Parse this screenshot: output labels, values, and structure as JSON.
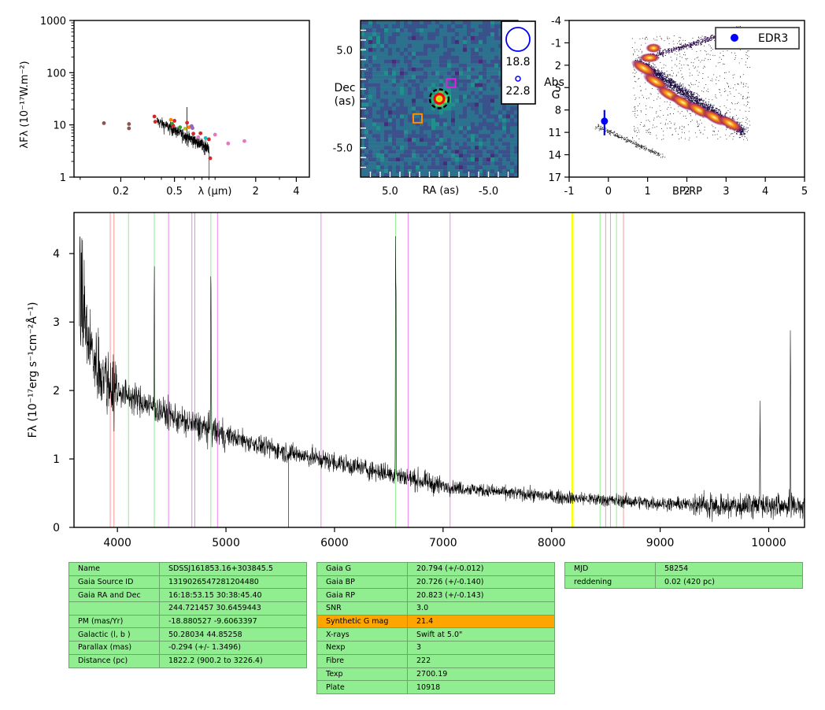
{
  "chart_data": [
    {
      "type": "scatter",
      "panel": "sed",
      "ylabel": "λFλ (10⁻¹⁷W.m⁻²)",
      "xlabel": "λ (μm)",
      "xscale": "log",
      "yscale": "log",
      "xlim": [
        0.09,
        5.0
      ],
      "ylim": [
        1,
        1000
      ],
      "xticks": [
        {
          "v": 0.2,
          "label": "0.2"
        },
        {
          "v": 0.5,
          "label": "0.5"
        },
        {
          "v": 2,
          "label": "2"
        },
        {
          "v": 4,
          "label": "4"
        }
      ],
      "yticks": [
        {
          "v": 1,
          "label": "1"
        },
        {
          "v": 10,
          "label": "10"
        },
        {
          "v": 100,
          "label": "100"
        },
        {
          "v": 1000,
          "label": "1000"
        }
      ],
      "points": [
        {
          "x": 0.15,
          "y": 10.8,
          "color": "#8c564b"
        },
        {
          "x": 0.23,
          "y": 10.4,
          "color": "#8c564b"
        },
        {
          "x": 0.23,
          "y": 8.6,
          "color": "#8c564b"
        },
        {
          "x": 0.355,
          "y": 14.5,
          "color": "#d62728"
        },
        {
          "x": 0.36,
          "y": 11.5,
          "color": "#d62728"
        },
        {
          "x": 0.47,
          "y": 12.5,
          "color": "#ff7f0e"
        },
        {
          "x": 0.48,
          "y": 10.5,
          "color": "#2ca02c"
        },
        {
          "x": 0.49,
          "y": 9.5,
          "color": "#d62728"
        },
        {
          "x": 0.5,
          "y": 12.0,
          "color": "#d62728"
        },
        {
          "x": 0.55,
          "y": 9.0,
          "color": "#2ca02c"
        },
        {
          "x": 0.6,
          "y": 8.5,
          "color": "#bcbd22"
        },
        {
          "x": 0.62,
          "y": 11.0,
          "color": "#d62728"
        },
        {
          "x": 0.64,
          "y": 9.0,
          "color": "#ff7f0e"
        },
        {
          "x": 0.67,
          "y": 9.5,
          "color": "#9467bd"
        },
        {
          "x": 0.68,
          "y": 8.7,
          "color": "#9467bd"
        },
        {
          "x": 0.69,
          "y": 6.8,
          "color": "#d62728"
        },
        {
          "x": 0.75,
          "y": 5.8,
          "color": "#e377c2"
        },
        {
          "x": 0.78,
          "y": 6.9,
          "color": "#d62728"
        },
        {
          "x": 0.85,
          "y": 5.6,
          "color": "#17becf"
        },
        {
          "x": 0.9,
          "y": 5.3,
          "color": "#d62728"
        },
        {
          "x": 0.92,
          "y": 2.3,
          "color": "#d62728"
        },
        {
          "x": 1.0,
          "y": 6.5,
          "color": "#e377c2"
        },
        {
          "x": 1.25,
          "y": 4.4,
          "color": "#e377c2"
        },
        {
          "x": 1.65,
          "y": 4.9,
          "color": "#e377c2"
        }
      ],
      "spectrum_overlay": "black"
    },
    {
      "type": "heatmap",
      "panel": "image",
      "xlabel": "RA (as)",
      "ylabel": "Dec\n(as)",
      "xlim": [
        8.0,
        -8.0
      ],
      "ylim": [
        -8.0,
        8.0
      ],
      "xticks": [
        {
          "v": 5.0,
          "label": "5.0"
        },
        {
          "v": -5.0,
          "label": "-5.0"
        }
      ],
      "yticks": [
        {
          "v": 5.0,
          "label": "5.0"
        },
        {
          "v": -5.0,
          "label": "-5.0"
        }
      ],
      "colormap": "viridis",
      "markers": [
        {
          "type": "circle-dashed",
          "x": 0.0,
          "y": 0.0,
          "color": "#000000"
        },
        {
          "type": "circle",
          "x": 0.0,
          "y": 0.0,
          "color": "#ff0000"
        },
        {
          "type": "circle",
          "x": 0.0,
          "y": 0.0,
          "color": "#ffd700"
        },
        {
          "type": "square",
          "x": -1.2,
          "y": 1.6,
          "color": "#e020e0"
        },
        {
          "type": "square",
          "x": 2.2,
          "y": -2.0,
          "color": "#ff8c00"
        }
      ],
      "legend": [
        {
          "label": "18.8",
          "marker": "large-blue-circle"
        },
        {
          "label": "22.8",
          "marker": "small-blue-circle"
        }
      ]
    },
    {
      "type": "scatter",
      "panel": "hrd",
      "xlabel": "BP-RP",
      "ylabel": "Abs\nG",
      "xlim": [
        -1,
        5
      ],
      "ylim": [
        17,
        -4
      ],
      "xticks": [
        {
          "v": -1,
          "label": "-1"
        },
        {
          "v": 0,
          "label": "0"
        },
        {
          "v": 1,
          "label": "1"
        },
        {
          "v": 2,
          "label": "2"
        },
        {
          "v": 3,
          "label": "3"
        },
        {
          "v": 4,
          "label": "4"
        },
        {
          "v": 5,
          "label": "5"
        }
      ],
      "yticks": [
        {
          "v": -4,
          "label": "-4"
        },
        {
          "v": -1,
          "label": "-1"
        },
        {
          "v": 2,
          "label": "2"
        },
        {
          "v": 5,
          "label": "5"
        },
        {
          "v": 8,
          "label": "8"
        },
        {
          "v": 11,
          "label": "11"
        },
        {
          "v": 14,
          "label": "14"
        },
        {
          "v": 17,
          "label": "17"
        }
      ],
      "background": "Gaia density (inferno)",
      "target": {
        "x": -0.1,
        "y": 9.5,
        "yerr_lo": 1.5,
        "yerr_hi": 1.9,
        "color": "#0000ff"
      },
      "legend": [
        {
          "label": "EDR3",
          "color": "#0000ff"
        }
      ],
      "legend_position": "top-right"
    },
    {
      "type": "line",
      "panel": "spectrum",
      "xlabel": "",
      "ylabel": "Fλ (10⁻¹⁷erg s⁻¹cm⁻²Å⁻¹)",
      "xlim": [
        3600,
        10330
      ],
      "ylim": [
        0,
        4.6
      ],
      "xticks": [
        {
          "v": 4000,
          "label": "4000"
        },
        {
          "v": 5000,
          "label": "5000"
        },
        {
          "v": 6000,
          "label": "6000"
        },
        {
          "v": 7000,
          "label": "7000"
        },
        {
          "v": 8000,
          "label": "8000"
        },
        {
          "v": 9000,
          "label": "9000"
        },
        {
          "v": 10000,
          "label": "10000"
        }
      ],
      "yticks": [
        {
          "v": 0,
          "label": "0"
        },
        {
          "v": 1,
          "label": "1"
        },
        {
          "v": 2,
          "label": "2"
        },
        {
          "v": 3,
          "label": "3"
        },
        {
          "v": 4,
          "label": "4"
        }
      ],
      "continuum": [
        [
          3650,
          3.8
        ],
        [
          3700,
          2.9
        ],
        [
          3800,
          2.4
        ],
        [
          3900,
          2.15
        ],
        [
          4000,
          2.0
        ],
        [
          4200,
          1.85
        ],
        [
          4400,
          1.7
        ],
        [
          4600,
          1.55
        ],
        [
          4800,
          1.45
        ],
        [
          5000,
          1.35
        ],
        [
          5200,
          1.25
        ],
        [
          5500,
          1.12
        ],
        [
          5800,
          1.02
        ],
        [
          6000,
          0.95
        ],
        [
          6300,
          0.85
        ],
        [
          6600,
          0.75
        ],
        [
          7000,
          0.6
        ],
        [
          7500,
          0.52
        ],
        [
          8000,
          0.45
        ],
        [
          8500,
          0.4
        ],
        [
          9000,
          0.35
        ],
        [
          9500,
          0.32
        ],
        [
          10000,
          0.32
        ],
        [
          10330,
          0.32
        ]
      ],
      "emission_lines": [
        {
          "x": 4340,
          "y": 4.4
        },
        {
          "x": 4861,
          "y": 4.4
        },
        {
          "x": 4865,
          "y": 3.0
        },
        {
          "x": 6563,
          "y": 4.4
        },
        {
          "x": 6566,
          "y": 4.3
        },
        {
          "x": 9920,
          "y": 1.85
        },
        {
          "x": 10200,
          "y": 3.2
        }
      ],
      "reference_lines": [
        {
          "x": 3934,
          "color": "#ff9999"
        },
        {
          "x": 3968,
          "color": "#ff9999"
        },
        {
          "x": 4102,
          "color": "#90ee90"
        },
        {
          "x": 4340,
          "color": "#90ee90"
        },
        {
          "x": 4471,
          "color": "#ee82ee"
        },
        {
          "x": 4686,
          "color": "#ee82ee"
        },
        {
          "x": 4713,
          "color": "#ee82ee"
        },
        {
          "x": 4861,
          "color": "#90ee90"
        },
        {
          "x": 4922,
          "color": "#ee82ee"
        },
        {
          "x": 5876,
          "color": "#ee82ee"
        },
        {
          "x": 6563,
          "color": "#90ee90"
        },
        {
          "x": 6678,
          "color": "#ee82ee"
        },
        {
          "x": 7065,
          "color": "#ee82ee"
        },
        {
          "x": 8190,
          "color": "#ffff00"
        },
        {
          "x": 8195,
          "color": "#ffff00"
        },
        {
          "x": 8446,
          "color": "#90ee90"
        },
        {
          "x": 8498,
          "color": "#ff9999"
        },
        {
          "x": 8542,
          "color": "#ff9999"
        },
        {
          "x": 8598,
          "color": "#90ee90"
        },
        {
          "x": 8662,
          "color": "#ff9999"
        }
      ]
    }
  ],
  "tables": {
    "left": [
      [
        "Name",
        "SDSSJ161853.16+303845.5"
      ],
      [
        "Gaia Source ID",
        "1319026547281204480"
      ],
      [
        "Gaia RA and Dec",
        "16:18:53.15    30:38:45.40"
      ],
      [
        "",
        "244.721457    30.6459443"
      ],
      [
        "PM (mas/Yr)",
        "-18.880527    -9.6063397"
      ],
      [
        "Galactic (l, b )",
        "50.28034    44.85258"
      ],
      [
        "Parallax (mas)",
        "-0.294 (+/- 1.3496)"
      ],
      [
        "Distance (pc)",
        "1822.2 (900.2 to 3226.4)"
      ]
    ],
    "middle": [
      [
        "Gaia G",
        "20.794 (+/-0.012)"
      ],
      [
        "Gaia BP",
        "20.726 (+/-0.140)"
      ],
      [
        "Gaia RP",
        "20.823 (+/-0.143)"
      ],
      [
        "SNR",
        "3.0"
      ],
      [
        "Synthetic G mag",
        "21.4"
      ],
      [
        "X-rays",
        "Swift at 5.0\""
      ],
      [
        "Nexp",
        "3"
      ],
      [
        "Fibre",
        "222"
      ],
      [
        "Texp",
        "2700.19"
      ],
      [
        "Plate",
        "10918"
      ]
    ],
    "middle_highlight_row": 4,
    "right": [
      [
        "MJD",
        "58254"
      ],
      [
        "reddening",
        "0.02 (420 pc)"
      ]
    ],
    "colors": {
      "cell": "#90ee90",
      "highlight": "#ffa500"
    }
  }
}
